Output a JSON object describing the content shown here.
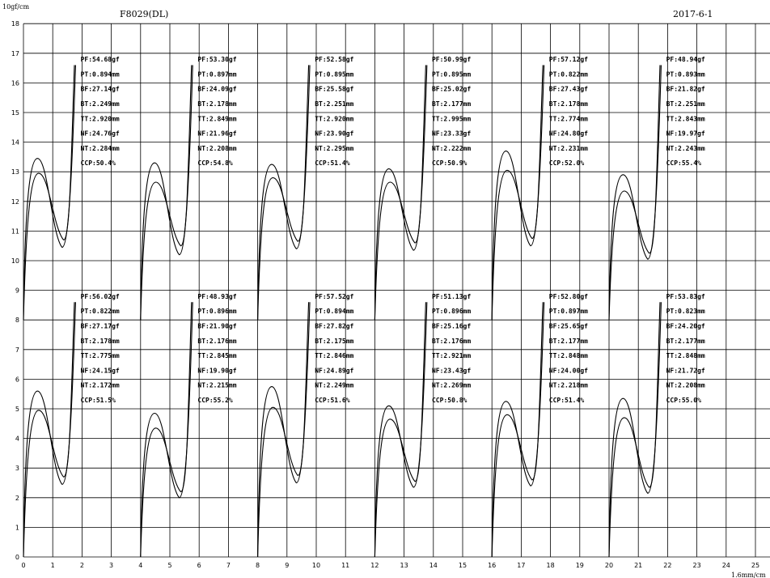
{
  "chart_data": {
    "type": "line",
    "title": "F8029(DL)",
    "date": "2017-6-1",
    "y_unit_label": "10gf/cm",
    "x_unit_label": "1.6mm/cm",
    "xlim": [
      0,
      25
    ],
    "ylim": [
      0,
      18
    ],
    "x_ticks": [
      "0",
      "1",
      "2",
      "3",
      "4",
      "5",
      "6",
      "7",
      "8",
      "9",
      "10",
      "11",
      "12",
      "13",
      "14",
      "15",
      "16",
      "17",
      "18",
      "19",
      "20",
      "21",
      "22",
      "23",
      "24",
      "25"
    ],
    "y_ticks": [
      "0",
      "1",
      "2",
      "3",
      "4",
      "5",
      "6",
      "7",
      "8",
      "9",
      "10",
      "11",
      "12",
      "13",
      "14",
      "15",
      "16",
      "17",
      "18"
    ],
    "grid": true,
    "panels": [
      {
        "row": "top",
        "x_start": 0,
        "y_base": 8,
        "peak_outer": 5.45,
        "peak_inner": 4.95,
        "min_outer": 2.45,
        "min_inner": 2.7,
        "stats": [
          "PF:54.68gf",
          "PT:0.894mm",
          "BF:27.14gf",
          "BT:2.249mm",
          "TT:2.920mm",
          "NF:24.76gf",
          "NT:2.284mm",
          "CCP:50.4%"
        ]
      },
      {
        "row": "top",
        "x_start": 4,
        "y_base": 8,
        "peak_outer": 5.3,
        "peak_inner": 4.65,
        "min_outer": 2.2,
        "min_inner": 2.5,
        "stats": [
          "PF:53.30gf",
          "PT:0.897mm",
          "BF:24.09gf",
          "BT:2.178mm",
          "TT:2.849mm",
          "NF:21.96gf",
          "NT:2.208mm",
          "CCP:54.8%"
        ]
      },
      {
        "row": "top",
        "x_start": 8,
        "y_base": 8,
        "peak_outer": 5.25,
        "peak_inner": 4.8,
        "min_outer": 2.4,
        "min_inner": 2.65,
        "stats": [
          "PF:52.58gf",
          "PT:0.895mm",
          "BF:25.58gf",
          "BT:2.251mm",
          "TT:2.920mm",
          "NF:23.90gf",
          "NT:2.295mm",
          "CCP:51.4%"
        ]
      },
      {
        "row": "top",
        "x_start": 12,
        "y_base": 8,
        "peak_outer": 5.1,
        "peak_inner": 4.65,
        "min_outer": 2.35,
        "min_inner": 2.6,
        "stats": [
          "PF:50.99gf",
          "PT:0.895mm",
          "BF:25.02gf",
          "BT:2.177mm",
          "TT:2.995mm",
          "NF:23.33gf",
          "NT:2.222mm",
          "CCP:50.9%"
        ]
      },
      {
        "row": "top",
        "x_start": 16,
        "y_base": 8,
        "peak_outer": 5.7,
        "peak_inner": 5.05,
        "min_outer": 2.5,
        "min_inner": 2.75,
        "stats": [
          "PF:57.12gf",
          "PT:0.822mm",
          "BF:27.43gf",
          "BT:2.178mm",
          "TT:2.774mm",
          "NF:24.80gf",
          "NT:2.231mm",
          "CCP:52.0%"
        ]
      },
      {
        "row": "top",
        "x_start": 20,
        "y_base": 8,
        "peak_outer": 4.9,
        "peak_inner": 4.35,
        "min_outer": 2.05,
        "min_inner": 2.25,
        "stats": [
          "PF:48.94gf",
          "PT:0.893mm",
          "BF:21.82gf",
          "BT:2.251mm",
          "TT:2.843mm",
          "NF:19.97gf",
          "NT:2.243mm",
          "CCP:55.4%"
        ]
      },
      {
        "row": "bottom",
        "x_start": 0,
        "y_base": 0,
        "peak_outer": 5.6,
        "peak_inner": 4.95,
        "min_outer": 2.45,
        "min_inner": 2.7,
        "stats": [
          "PF:56.02gf",
          "PT:0.822mm",
          "BF:27.17gf",
          "BT:2.178mm",
          "TT:2.775mm",
          "NF:24.15gf",
          "NT:2.172mm",
          "CCP:51.5%"
        ]
      },
      {
        "row": "bottom",
        "x_start": 4,
        "y_base": 0,
        "peak_outer": 4.85,
        "peak_inner": 4.35,
        "min_outer": 2.0,
        "min_inner": 2.2,
        "stats": [
          "PF:48.93gf",
          "PT:0.896mm",
          "BF:21.90gf",
          "BT:2.176mm",
          "TT:2.845mm",
          "NF:19.90gf",
          "NT:2.215mm",
          "CCP:55.2%"
        ]
      },
      {
        "row": "bottom",
        "x_start": 8,
        "y_base": 0,
        "peak_outer": 5.75,
        "peak_inner": 5.05,
        "min_outer": 2.5,
        "min_inner": 2.75,
        "stats": [
          "PF:57.52gf",
          "PT:0.894mm",
          "BF:27.82gf",
          "BT:2.175mm",
          "TT:2.846mm",
          "NF:24.89gf",
          "NT:2.249mm",
          "CCP:51.6%"
        ]
      },
      {
        "row": "bottom",
        "x_start": 12,
        "y_base": 0,
        "peak_outer": 5.1,
        "peak_inner": 4.65,
        "min_outer": 2.35,
        "min_inner": 2.55,
        "stats": [
          "PF:51.13gf",
          "PT:0.896mm",
          "BF:25.16gf",
          "BT:2.176mm",
          "TT:2.921mm",
          "NF:23.43gf",
          "NT:2.269mm",
          "CCP:50.8%"
        ]
      },
      {
        "row": "bottom",
        "x_start": 16,
        "y_base": 0,
        "peak_outer": 5.25,
        "peak_inner": 4.8,
        "min_outer": 2.4,
        "min_inner": 2.6,
        "stats": [
          "PF:52.80gf",
          "PT:0.897mm",
          "BF:25.65gf",
          "BT:2.177mm",
          "TT:2.848mm",
          "NF:24.00gf",
          "NT:2.218mm",
          "CCP:51.4%"
        ]
      },
      {
        "row": "bottom",
        "x_start": 20,
        "y_base": 0,
        "peak_outer": 5.35,
        "peak_inner": 4.7,
        "min_outer": 2.15,
        "min_inner": 2.35,
        "stats": [
          "PF:53.83gf",
          "PT:0.823mm",
          "BF:24.20gf",
          "BT:2.177mm",
          "TT:2.848mm",
          "NF:21.72gf",
          "NT:2.208mm",
          "CCP:55.0%"
        ]
      }
    ]
  }
}
